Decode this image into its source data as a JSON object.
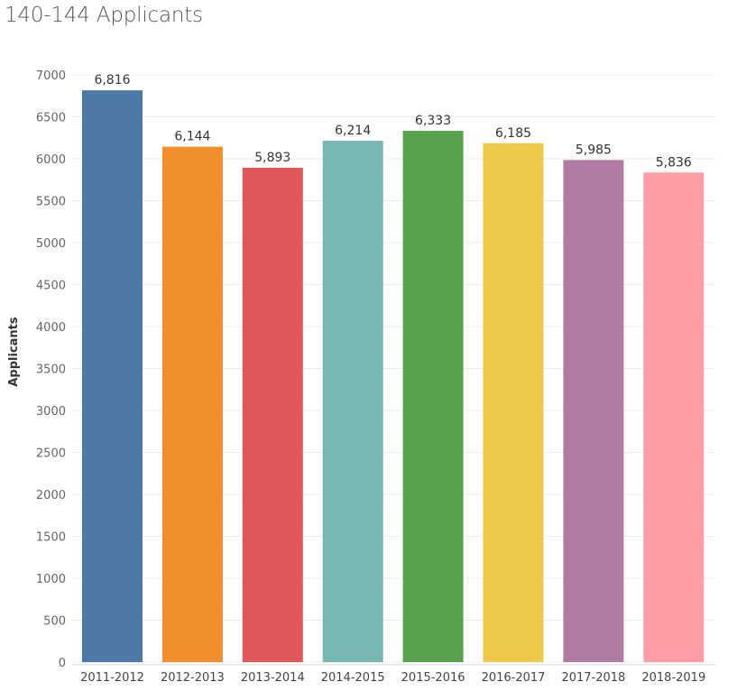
{
  "title": "140-144 Applicants",
  "chart_data": {
    "type": "bar",
    "title": "140-144 Applicants",
    "xlabel": "",
    "ylabel": "Applicants",
    "categories": [
      "2011-2012",
      "2012-2013",
      "2013-2014",
      "2014-2015",
      "2015-2016",
      "2016-2017",
      "2017-2018",
      "2018-2019"
    ],
    "values": [
      6816,
      6144,
      5893,
      6214,
      6333,
      6185,
      5985,
      5836
    ],
    "data_labels": [
      "6,816",
      "6,144",
      "5,893",
      "6,214",
      "6,333",
      "6,185",
      "5,985",
      "5,836"
    ],
    "colors": [
      "#4e79a7",
      "#f28e2b",
      "#e15759",
      "#76b7b2",
      "#59a14f",
      "#edc948",
      "#b07aa1",
      "#ff9da7"
    ],
    "y_ticks": [
      0,
      500,
      1000,
      1500,
      2000,
      2500,
      3000,
      3500,
      4000,
      4500,
      5000,
      5500,
      6000,
      6500,
      7000
    ],
    "ylim": [
      0,
      7000
    ],
    "grid": true,
    "legend": "none"
  }
}
